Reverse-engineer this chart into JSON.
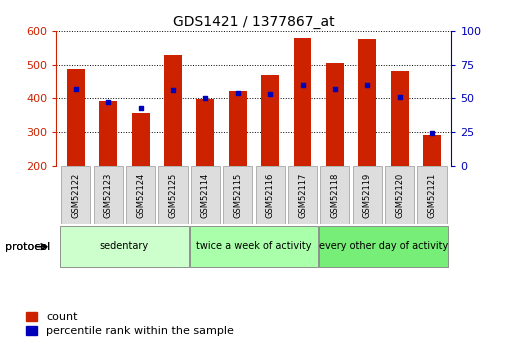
{
  "title": "GDS1421 / 1377867_at",
  "samples": [
    "GSM52122",
    "GSM52123",
    "GSM52124",
    "GSM52125",
    "GSM52114",
    "GSM52115",
    "GSM52116",
    "GSM52117",
    "GSM52118",
    "GSM52119",
    "GSM52120",
    "GSM52121"
  ],
  "count_values": [
    487,
    392,
    356,
    529,
    399,
    421,
    468,
    579,
    506,
    576,
    480,
    291
  ],
  "percentile_values": [
    57,
    47,
    43,
    56,
    50,
    54,
    53,
    60,
    57,
    60,
    51,
    24
  ],
  "y_min": 200,
  "y_max": 600,
  "y_ticks": [
    200,
    300,
    400,
    500,
    600
  ],
  "y2_ticks": [
    0,
    25,
    50,
    75,
    100
  ],
  "bar_color": "#cc2200",
  "marker_color": "#0000bb",
  "bar_width": 0.55,
  "groups": [
    {
      "label": "sedentary",
      "start": 0,
      "end": 3,
      "color": "#ccffcc"
    },
    {
      "label": "twice a week of activity",
      "start": 4,
      "end": 7,
      "color": "#aaffaa"
    },
    {
      "label": "every other day of activity",
      "start": 8,
      "end": 11,
      "color": "#77ee77"
    }
  ],
  "protocol_label": "protocol",
  "legend_count_label": "count",
  "legend_pct_label": "percentile rank within the sample",
  "background_color": "#ffffff",
  "sample_box_color": "#dddddd",
  "sample_box_edge": "#999999"
}
